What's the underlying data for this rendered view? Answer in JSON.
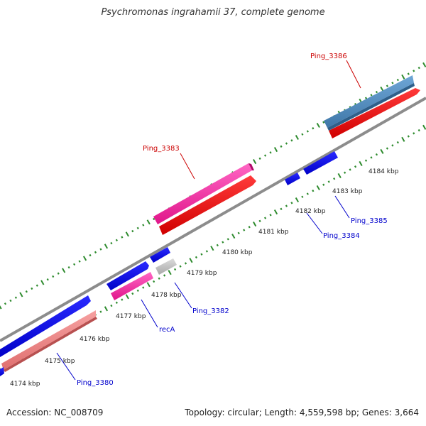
{
  "title": "Psychromonas ingrahamii 37, complete genome",
  "footer": {
    "accession": "Accession: NC_008709",
    "stats": "Topology: circular; Length: 4,559,598 bp; Genes: 3,664"
  },
  "colors": {
    "backbone": "#8c8c8c",
    "ticks": "#2e8b2e",
    "gene_forward": "#ff0000",
    "gene_highlight": "#ff33aa",
    "gene_pseudo_light": "#f08080",
    "gene_steelblue": "#4a86b8",
    "gene_blue": "#0000e6",
    "gene_grey": "#bfbfbf",
    "label_red": "#cc0000",
    "label_blue": "#0000cc"
  },
  "scale_ticks": [
    "4174 kbp",
    "4175 kbp",
    "4176 kbp",
    "4177 kbp",
    "4178 kbp",
    "4179 kbp",
    "4180 kbp",
    "4181 kbp",
    "4182 kbp",
    "4183 kbp",
    "4184 kbp"
  ],
  "gene_labels": {
    "ping_3386": "Ping_3386",
    "ping_3383": "Ping_3383",
    "ping_3385": "Ping_3385",
    "ping_3384": "Ping_3384",
    "ping_3382": "Ping_3382",
    "reca": "recA",
    "ping_3380": "Ping_3380"
  }
}
